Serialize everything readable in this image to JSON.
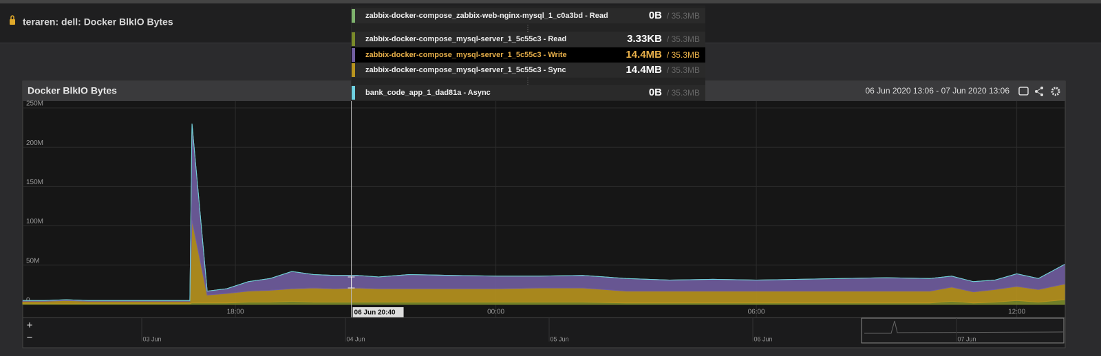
{
  "header": {
    "title": "teraren: dell: Docker BlkIO Bytes"
  },
  "panel": {
    "title": "Docker BlkIO Bytes",
    "time_range": "06 Jun 2020 13:06 - 07 Jun 2020 13:06"
  },
  "tooltip": {
    "rows": [
      {
        "value": "0B",
        "total": "/ 35.3MB"
      },
      {
        "value": "3.33KB",
        "total": "/ 35.3MB"
      },
      {
        "value": "14.4MB",
        "total": "/ 35.3MB"
      },
      {
        "value": "14.4MB",
        "total": "/ 35.3MB"
      },
      {
        "value": "0B",
        "total": "/ 35.3MB"
      }
    ]
  },
  "crosshair": {
    "label": "06 Jun 20:40"
  },
  "navigator": {
    "zoom_in": "+",
    "zoom_out": "−",
    "labels": [
      "03 Jun",
      "04 Jun",
      "05 Jun",
      "06 Jun",
      "07 Jun"
    ]
  },
  "chart_data": {
    "type": "stacked-area",
    "x": [
      13.1,
      13.6,
      14.1,
      14.6,
      15.1,
      15.6,
      16.1,
      16.6,
      16.95,
      17.0,
      17.35,
      17.8,
      18.3,
      18.8,
      19.3,
      19.8,
      20.3,
      20.8,
      21.3,
      22,
      23,
      24,
      25,
      26,
      27,
      28,
      29,
      30,
      31,
      32,
      33,
      34,
      34.5,
      35,
      35.5,
      36,
      36.5,
      37.1
    ],
    "xlim": [
      13.1,
      37.1
    ],
    "xticks": [
      {
        "value": 18,
        "label": "18:00"
      },
      {
        "value": 24,
        "label": "00:00"
      },
      {
        "value": 30,
        "label": "06:00"
      },
      {
        "value": 36,
        "label": "12:00"
      }
    ],
    "ylim": [
      0,
      250
    ],
    "yticks": [
      0,
      {
        "value": 50,
        "label": "50M"
      },
      {
        "value": 100,
        "label": "100M"
      },
      {
        "value": 150,
        "label": "150M"
      },
      {
        "value": 200,
        "label": "200M"
      },
      {
        "value": 250,
        "label": "250M"
      }
    ],
    "grid": true,
    "series": [
      {
        "name": "zabbix-docker-compose_zabbix-web-nginx-mysql_1_c0a3bd - Read",
        "color": "#7eb26d",
        "values": [
          0,
          0,
          0,
          0,
          0,
          0,
          0,
          0,
          0,
          0,
          0,
          0,
          0,
          0,
          0,
          0,
          0,
          0,
          0,
          0,
          0,
          0,
          0,
          0,
          0,
          0,
          0,
          0,
          0,
          0,
          0,
          0,
          0,
          0,
          0,
          0,
          0,
          0
        ]
      },
      {
        "name": "zabbix-docker-compose_mysql-server_1_5c55c3 - Read",
        "color": "#7a8a2a",
        "values": [
          1,
          1,
          1,
          1,
          1,
          1,
          1,
          1,
          1,
          2,
          2,
          2,
          3,
          3,
          4,
          3,
          3,
          3,
          3,
          3,
          3,
          3,
          3,
          3,
          2,
          2,
          2,
          2,
          2,
          2,
          2,
          2,
          4,
          2,
          3,
          5,
          3,
          6
        ]
      },
      {
        "name": "zabbix-docker-compose_mysql-server_1_5c55c3 - Write",
        "color": "#705da0",
        "values": [
          1,
          1,
          1,
          1,
          1,
          1,
          1,
          1,
          1,
          123,
          5,
          6,
          12,
          15,
          22,
          17,
          17,
          16,
          15,
          18,
          17,
          16,
          15,
          16,
          16,
          14,
          15,
          14,
          15,
          16,
          17,
          16,
          14,
          13,
          12,
          16,
          14,
          25
        ]
      },
      {
        "name": "zabbix-docker-compose_mysql-server_1_5c55c3 - Sync",
        "color": "#b8941e",
        "values": [
          3,
          3,
          4,
          3,
          3,
          3,
          3,
          3,
          3,
          105,
          10,
          12,
          14,
          15,
          16,
          18,
          17,
          18,
          17,
          17,
          17,
          17,
          18,
          18,
          15,
          15,
          15,
          15,
          15,
          15,
          15,
          15,
          18,
          14,
          16,
          18,
          16,
          20
        ]
      },
      {
        "name": "bank_code_app_1_dad81a - Async",
        "color": "#6ed0e0",
        "values": [
          0,
          0,
          0,
          0,
          0,
          0,
          0,
          0,
          0,
          0,
          0,
          0,
          0,
          0,
          0,
          0,
          0,
          0,
          0,
          0,
          0,
          0,
          0,
          0,
          0,
          0,
          0,
          0,
          0,
          0,
          0,
          0,
          0,
          0,
          0,
          0,
          0,
          0
        ]
      }
    ],
    "crosshair_x": 20.67
  }
}
